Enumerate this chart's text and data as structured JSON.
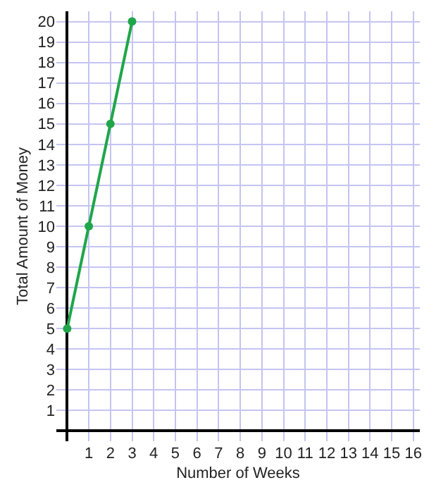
{
  "chart_data": {
    "type": "line",
    "xlabel": "Number of Weeks",
    "ylabel": "Total Amount of Money",
    "x": [
      0,
      1,
      2,
      3
    ],
    "series": [
      {
        "color": "#1fa64a",
        "values": [
          5,
          10,
          15,
          20
        ]
      }
    ],
    "xlim": [
      -0.5,
      16.3
    ],
    "ylim": [
      -0.5,
      20.5
    ],
    "xticks": [
      1,
      2,
      3,
      4,
      5,
      6,
      7,
      8,
      9,
      10,
      11,
      12,
      13,
      14,
      15,
      16
    ],
    "yticks": [
      1,
      2,
      3,
      4,
      5,
      6,
      7,
      8,
      9,
      10,
      11,
      12,
      13,
      14,
      15,
      16,
      17,
      18,
      19,
      20
    ],
    "grid": true,
    "marker": "circle",
    "line_style": "solid",
    "legend": false
  }
}
